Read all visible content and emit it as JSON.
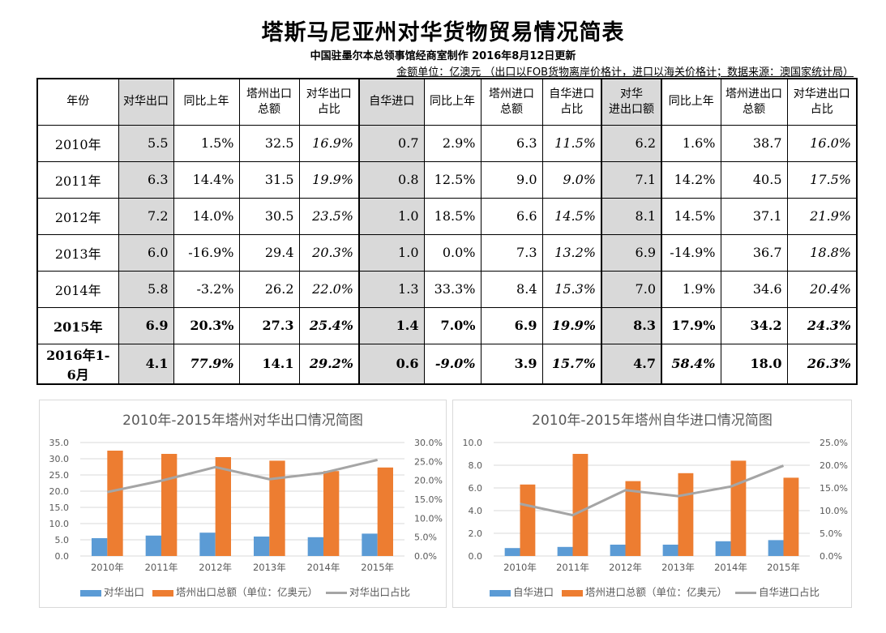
{
  "header": {
    "title": "塔斯马尼亚州对华货物贸易情况简表",
    "subtitle": "中国驻墨尔本总领事馆经商室制作 2016年8月12日更新",
    "unit_note": "金额单位：亿澳元 （出口以FOB货物离岸价格计，进口以海关价格计；数据来源：澳国家统计局）"
  },
  "table": {
    "columns": [
      "年份",
      "对华出口",
      "同比上年",
      "塔州出口总额",
      "对华出口占比",
      "自华进口",
      "同比上年",
      "塔州进口总额",
      "自华进口占比",
      "对华进出口额",
      "同比上年",
      "塔州进出口总额",
      "对华进出口占比"
    ],
    "column_lines": [
      [
        "年份"
      ],
      [
        "对华出口"
      ],
      [
        "同比上年"
      ],
      [
        "塔州出口",
        "总额"
      ],
      [
        "对华出口",
        "占比"
      ],
      [
        "自华进口"
      ],
      [
        "同比上年"
      ],
      [
        "塔州进口",
        "总额"
      ],
      [
        "自华进口",
        "占比"
      ],
      [
        "对华",
        "进出口额"
      ],
      [
        "同比上年"
      ],
      [
        "塔州进出口",
        "总额"
      ],
      [
        "对华进出口",
        "占比"
      ]
    ],
    "rows": [
      [
        "2010年",
        "5.5",
        "1.5%",
        "32.5",
        "16.9%",
        "0.7",
        "2.9%",
        "6.3",
        "11.5%",
        "6.2",
        "1.6%",
        "38.7",
        "16.0%"
      ],
      [
        "2011年",
        "6.3",
        "14.4%",
        "31.5",
        "19.9%",
        "0.8",
        "12.5%",
        "9.0",
        "9.0%",
        "7.1",
        "14.2%",
        "40.5",
        "17.5%"
      ],
      [
        "2012年",
        "7.2",
        "14.0%",
        "30.5",
        "23.5%",
        "1.0",
        "18.5%",
        "6.6",
        "14.5%",
        "8.1",
        "14.5%",
        "37.1",
        "21.9%"
      ],
      [
        "2013年",
        "6.0",
        "-16.9%",
        "29.4",
        "20.3%",
        "1.0",
        "0.0%",
        "7.3",
        "13.2%",
        "6.9",
        "-14.9%",
        "36.7",
        "18.8%"
      ],
      [
        "2014年",
        "5.8",
        "-3.2%",
        "26.2",
        "22.0%",
        "1.3",
        "33.3%",
        "8.4",
        "15.3%",
        "7.0",
        "1.9%",
        "34.6",
        "20.4%"
      ],
      [
        "2015年",
        "6.9",
        "20.3%",
        "27.3",
        "25.4%",
        "1.4",
        "7.0%",
        "6.9",
        "19.9%",
        "8.3",
        "17.9%",
        "34.2",
        "24.3%"
      ],
      [
        "2016年1-6月",
        "4.1",
        "77.9%",
        "14.1",
        "29.2%",
        "0.6",
        "-9.0%",
        "3.9",
        "15.7%",
        "4.7",
        "58.4%",
        "18.0",
        "26.3%"
      ]
    ]
  },
  "colors": {
    "bar_china": "#5b9bd5",
    "bar_total": "#ed7d31",
    "line_share": "#a5a5a5",
    "shade": "#d9d9d9"
  },
  "chart_data": [
    {
      "type": "bar",
      "title": "2010年-2015年塔州对华出口情况简图",
      "categories": [
        "2010年",
        "2011年",
        "2012年",
        "2013年",
        "2014年",
        "2015年"
      ],
      "series": [
        {
          "name": "对华出口",
          "values": [
            5.5,
            6.3,
            7.2,
            6.0,
            5.8,
            6.9
          ],
          "axis": "left",
          "kind": "bar"
        },
        {
          "name": "塔州出口总额（单位：亿奥元）",
          "values": [
            32.5,
            31.5,
            30.5,
            29.4,
            26.2,
            27.3
          ],
          "axis": "left",
          "kind": "bar"
        },
        {
          "name": "对华出口占比",
          "values": [
            16.9,
            19.9,
            23.5,
            20.3,
            22.0,
            25.4
          ],
          "axis": "right",
          "kind": "line"
        }
      ],
      "ylim": [
        0,
        35
      ],
      "y_ticks": [
        "0.0",
        "5.0",
        "10.0",
        "15.0",
        "20.0",
        "25.0",
        "30.0",
        "35.0"
      ],
      "y2lim": [
        0,
        30
      ],
      "y2_ticks": [
        "0.0%",
        "5.0%",
        "10.0%",
        "15.0%",
        "20.0%",
        "25.0%",
        "30.0%"
      ],
      "grid": true,
      "legend": "bottom"
    },
    {
      "type": "bar",
      "title": "2010年-2015年塔州自华进口情况简图",
      "categories": [
        "2010年",
        "2011年",
        "2012年",
        "2013年",
        "2014年",
        "2015年"
      ],
      "series": [
        {
          "name": "自华进口",
          "values": [
            0.7,
            0.8,
            1.0,
            1.0,
            1.3,
            1.4
          ],
          "axis": "left",
          "kind": "bar"
        },
        {
          "name": "塔州进口总额（单位：亿奥元）",
          "values": [
            6.3,
            9.0,
            6.6,
            7.3,
            8.4,
            6.9
          ],
          "axis": "left",
          "kind": "bar"
        },
        {
          "name": "自华进口占比",
          "values": [
            11.5,
            9.0,
            14.5,
            13.2,
            15.3,
            19.9
          ],
          "axis": "right",
          "kind": "line"
        }
      ],
      "ylim": [
        0,
        10
      ],
      "y_ticks": [
        "0.0",
        "2.0",
        "4.0",
        "6.0",
        "8.0",
        "10.0"
      ],
      "y2lim": [
        0,
        25
      ],
      "y2_ticks": [
        "0.0%",
        "5.0%",
        "10.0%",
        "15.0%",
        "20.0%",
        "25.0%"
      ],
      "grid": true,
      "legend": "bottom"
    }
  ]
}
